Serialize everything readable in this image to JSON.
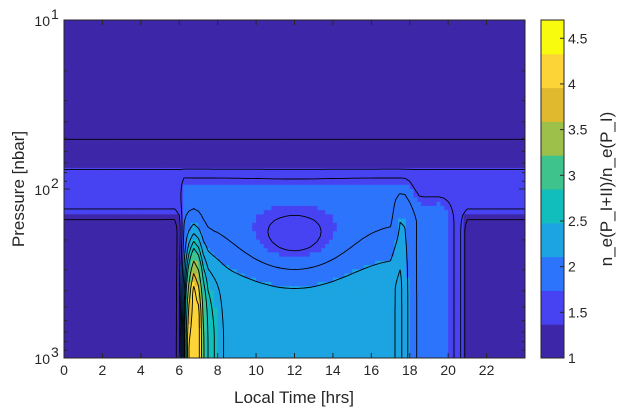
{
  "chart_data": {
    "type": "heatmap",
    "title": "",
    "xlabel": "Local Time [hrs]",
    "ylabel": "Pressure [nbar]",
    "colorbar_label": "n_e(P_I+II)/n_e(P_I)",
    "xlim": [
      0,
      24
    ],
    "ylim": [
      10,
      1000
    ],
    "y_scale": "log",
    "y_reversed": true,
    "x_ticks": [
      "0",
      "2",
      "4",
      "6",
      "8",
      "10",
      "12",
      "14",
      "16",
      "18",
      "20",
      "22"
    ],
    "y_ticks": [
      {
        "base": "10",
        "exp": "1"
      },
      {
        "base": "10",
        "exp": "2"
      },
      {
        "base": "10",
        "exp": "3"
      }
    ],
    "colorbar_ticks": [
      "1",
      "1.5",
      "2",
      "2.5",
      "3",
      "3.5",
      "4",
      "4.5"
    ],
    "colorbar_range": [
      1,
      4.7
    ],
    "colormap": [
      "#3e26a8",
      "#4743f2",
      "#2d74fc",
      "#1ba4e1",
      "#12bebb",
      "#3ec38d",
      "#9dc04b",
      "#e1b92f",
      "#fcd437",
      "#f9fb0e"
    ],
    "contour_levels": [
      1.25,
      1.5,
      1.75,
      2.0,
      2.25,
      2.5,
      2.75,
      3.0,
      3.5,
      4.0,
      4.5
    ],
    "x_grid": [
      0,
      1,
      2,
      3,
      4,
      5,
      6,
      6.5,
      6.8,
      7,
      7.3,
      7.6,
      8,
      9,
      10,
      11,
      12,
      13,
      14,
      15,
      16,
      17,
      17.5,
      18,
      18.5,
      19,
      20,
      20.5,
      21,
      22,
      23,
      24
    ],
    "p_grid": [
      10,
      35,
      45,
      55,
      62,
      75,
      90,
      110,
      130,
      160,
      220,
      280,
      350,
      450,
      550,
      650,
      750,
      850,
      950,
      1000
    ],
    "notes_source": "values digitized from contour plot"
  }
}
